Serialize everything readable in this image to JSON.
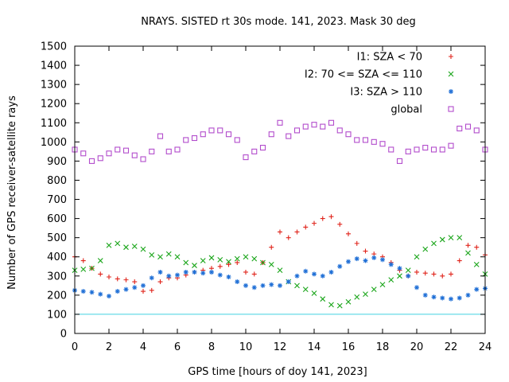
{
  "chart_data": {
    "type": "scatter",
    "title": "NRAYS. SISTED rt 30s mode. 141, 2023. Mask 30 deg",
    "xlabel": "GPS time [hours of doy 141, 2023]",
    "ylabel": "Number of GPS receiver-satellite rays",
    "xlim": [
      0,
      24
    ],
    "ylim": [
      0,
      1500
    ],
    "xticks": [
      0,
      2,
      4,
      6,
      8,
      10,
      12,
      14,
      16,
      18,
      20,
      22,
      24
    ],
    "yticks": [
      0,
      100,
      200,
      300,
      400,
      500,
      600,
      700,
      800,
      900,
      1000,
      1100,
      1200,
      1300,
      1400,
      1500
    ],
    "legend_position": "top-right",
    "reference_line": {
      "y": 100,
      "color": "#40d0e0"
    },
    "series": [
      {
        "name": "I1: SZA < 70",
        "marker": "+",
        "color": "#e0241b",
        "x": [
          0,
          0.5,
          1,
          1.5,
          2,
          2.5,
          3,
          3.5,
          4,
          4.5,
          5,
          5.5,
          6,
          6.5,
          7,
          7.5,
          8,
          8.5,
          9,
          9.5,
          10,
          10.5,
          11,
          11.5,
          12,
          12.5,
          13,
          13.5,
          14,
          14.5,
          15,
          15.5,
          16,
          16.5,
          17,
          17.5,
          18,
          18.5,
          19,
          19.5,
          20,
          20.5,
          21,
          21.5,
          22,
          22.5,
          23,
          23.5,
          24
        ],
        "y": [
          400,
          380,
          340,
          310,
          295,
          285,
          280,
          270,
          220,
          225,
          270,
          290,
          290,
          305,
          320,
          330,
          340,
          350,
          360,
          370,
          320,
          310,
          370,
          450,
          530,
          500,
          530,
          555,
          575,
          600,
          610,
          570,
          520,
          470,
          430,
          415,
          400,
          370,
          330,
          300,
          320,
          315,
          310,
          300,
          310,
          380,
          460,
          450,
          410
        ]
      },
      {
        "name": "I2: 70 <= SZA <= 110",
        "marker": "x",
        "color": "#19a519",
        "x": [
          0,
          0.5,
          1,
          1.5,
          2,
          2.5,
          3,
          3.5,
          4,
          4.5,
          5,
          5.5,
          6,
          6.5,
          7,
          7.5,
          8,
          8.5,
          9,
          9.5,
          10,
          10.5,
          11,
          11.5,
          12,
          12.5,
          13,
          13.5,
          14,
          14.5,
          15,
          15.5,
          16,
          16.5,
          17,
          17.5,
          18,
          18.5,
          19,
          19.5,
          20,
          20.5,
          21,
          21.5,
          22,
          22.5,
          23,
          23.5,
          24
        ],
        "y": [
          330,
          335,
          340,
          380,
          460,
          470,
          450,
          455,
          440,
          410,
          400,
          415,
          400,
          370,
          355,
          380,
          395,
          385,
          375,
          390,
          400,
          390,
          370,
          360,
          330,
          270,
          250,
          230,
          210,
          180,
          150,
          145,
          165,
          190,
          205,
          230,
          255,
          280,
          300,
          330,
          400,
          440,
          470,
          490,
          500,
          500,
          420,
          360,
          310
        ]
      },
      {
        "name": "I3: SZA > 110",
        "marker": "*",
        "color": "#1f6fd6",
        "x": [
          0,
          0.5,
          1,
          1.5,
          2,
          2.5,
          3,
          3.5,
          4,
          4.5,
          5,
          5.5,
          6,
          6.5,
          7,
          7.5,
          8,
          8.5,
          9,
          9.5,
          10,
          10.5,
          11,
          11.5,
          12,
          12.5,
          13,
          13.5,
          14,
          14.5,
          15,
          15.5,
          16,
          16.5,
          17,
          17.5,
          18,
          18.5,
          19,
          19.5,
          20,
          20.5,
          21,
          21.5,
          22,
          22.5,
          23,
          23.5,
          24
        ],
        "y": [
          225,
          220,
          215,
          205,
          195,
          220,
          230,
          240,
          250,
          290,
          320,
          300,
          305,
          320,
          320,
          315,
          320,
          305,
          295,
          270,
          250,
          240,
          250,
          255,
          250,
          270,
          300,
          325,
          310,
          300,
          320,
          350,
          375,
          390,
          380,
          395,
          385,
          360,
          340,
          300,
          240,
          200,
          190,
          185,
          180,
          185,
          200,
          230,
          235
        ]
      },
      {
        "name": "global",
        "marker": "square",
        "color": "#b24ccc",
        "x": [
          0,
          0.5,
          1,
          1.5,
          2,
          2.5,
          3,
          3.5,
          4,
          4.5,
          5,
          5.5,
          6,
          6.5,
          7,
          7.5,
          8,
          8.5,
          9,
          9.5,
          10,
          10.5,
          11,
          11.5,
          12,
          12.5,
          13,
          13.5,
          14,
          14.5,
          15,
          15.5,
          16,
          16.5,
          17,
          17.5,
          18,
          18.5,
          19,
          19.5,
          20,
          20.5,
          21,
          21.5,
          22,
          22.5,
          23,
          23.5,
          24
        ],
        "y": [
          960,
          940,
          900,
          915,
          940,
          960,
          955,
          930,
          910,
          950,
          1030,
          950,
          960,
          1010,
          1020,
          1040,
          1060,
          1060,
          1040,
          1010,
          920,
          950,
          970,
          1040,
          1100,
          1030,
          1060,
          1080,
          1090,
          1080,
          1100,
          1060,
          1040,
          1010,
          1010,
          1000,
          990,
          960,
          900,
          950,
          960,
          970,
          960,
          960,
          980,
          1070,
          1080,
          1060,
          960
        ]
      }
    ]
  }
}
